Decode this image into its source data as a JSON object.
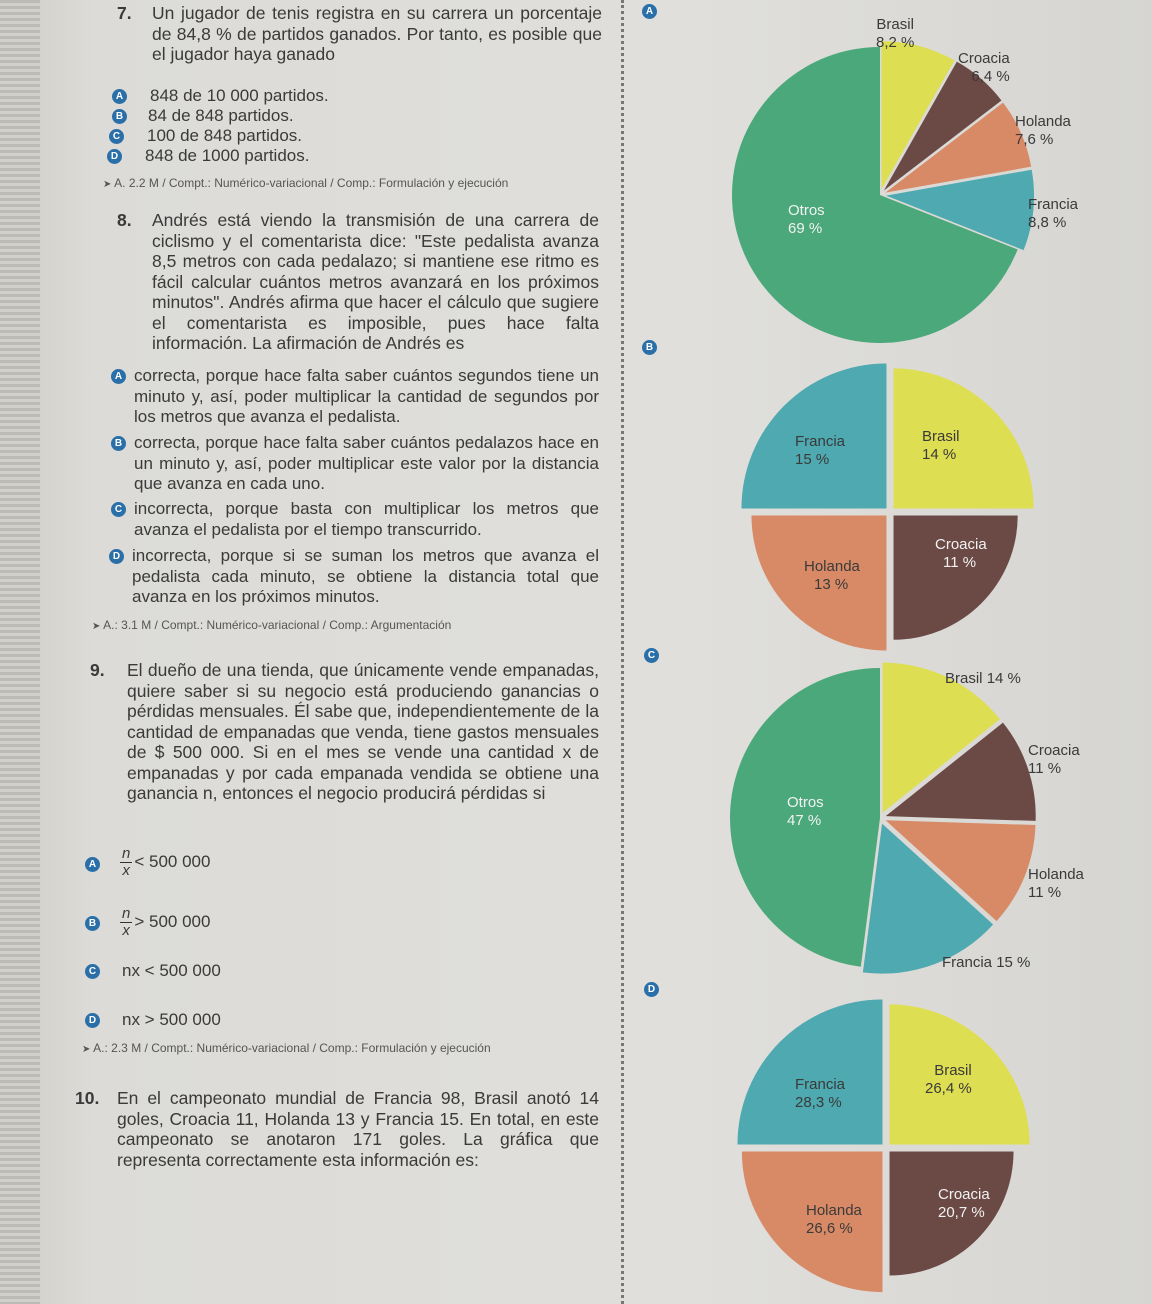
{
  "q7": {
    "num": "7.",
    "text": "Un jugador de tenis registra en su carrera un porcentaje de 84,8 % de partidos ganados. Por tanto, es posible que el jugador haya ganado",
    "options": [
      {
        "letter": "A",
        "text": "848 de 10 000 partidos."
      },
      {
        "letter": "B",
        "text": "84 de 848 partidos."
      },
      {
        "letter": "C",
        "text": "100 de 848 partidos."
      },
      {
        "letter": "D",
        "text": "848 de 1000 partidos."
      }
    ],
    "meta": "A. 2.2 M / Compt.: Numérico-variacional / Comp.: Formulación y ejecución"
  },
  "q8": {
    "num": "8.",
    "text": "Andrés está viendo la transmisión de una carrera de ciclismo y el comentarista dice: \"Este pedalista avanza 8,5 metros con cada pedalazo; si mantiene ese ritmo es fácil calcular cuántos metros avanzará en los próximos minutos\". Andrés afirma que hacer el cálculo que sugiere el comentarista es imposible, pues hace falta información. La afirmación de Andrés es",
    "options": [
      {
        "letter": "A",
        "text": "correcta, porque hace falta saber cuántos segundos tiene un minuto y, así, poder multiplicar la cantidad de segundos por los metros que avanza el pedalista."
      },
      {
        "letter": "B",
        "text": "correcta, porque hace falta saber cuántos pedalazos hace en un minuto y, así, poder multiplicar este valor por la distancia que avanza en cada uno."
      },
      {
        "letter": "C",
        "text": "incorrecta, porque basta con multiplicar los metros que avanza el pedalista por el tiempo transcurrido."
      },
      {
        "letter": "D",
        "text": "incorrecta, porque si se suman los metros que avanza el pedalista cada minuto, se obtiene la distancia total que avanza en los próximos minutos."
      }
    ],
    "meta": "A.: 3.1 M / Compt.: Numérico-variacional / Comp.: Argumentación"
  },
  "q9": {
    "num": "9.",
    "text": "El dueño de una tienda, que únicamente vende empanadas, quiere saber si su negocio está produciendo ganancias o pérdidas mensuales. Él sabe que, independientemente de la cantidad de empanadas que venda, tiene gastos mensuales de $ 500 000. Si en el mes se vende una cantidad x de empanadas y por cada empanada vendida se obtiene una ganancia n, entonces el negocio producirá pérdidas si",
    "options": [
      {
        "letter": "A",
        "num": "n",
        "den": "x",
        "rest": "< 500 000"
      },
      {
        "letter": "B",
        "num": "n",
        "den": "x",
        "rest": "> 500 000"
      },
      {
        "letter": "C",
        "text": "nx < 500 000"
      },
      {
        "letter": "D",
        "text": "nx > 500 000"
      }
    ],
    "meta": "A.: 2.3 M / Compt.: Numérico-variacional / Comp.: Formulación y ejecución"
  },
  "q10": {
    "num": "10.",
    "text": "En el campeonato mundial de Francia 98, Brasil anotó 14 goles, Croacia 11, Holanda 13 y Francia 15. En total, en este campeonato se anotaron 171 goles. La gráfica que representa correctamente esta información es:"
  },
  "chart_data": [
    {
      "type": "pie",
      "option": "A",
      "slices": [
        {
          "name": "Brasil",
          "value": 8.2,
          "label": "8,2 %",
          "color": "#dede52"
        },
        {
          "name": "Croacia",
          "value": 6.4,
          "label": "6,4 %",
          "color": "#6b4a46"
        },
        {
          "name": "Holanda",
          "value": 7.6,
          "label": "7,6 %",
          "color": "#d88a66"
        },
        {
          "name": "Francia",
          "value": 8.8,
          "label": "8,8 %",
          "color": "#4ea9b0"
        },
        {
          "name": "Otros",
          "value": 69,
          "label": "69 %",
          "color": "#4aa87a"
        }
      ]
    },
    {
      "type": "pie",
      "option": "B",
      "slices": [
        {
          "name": "Brasil",
          "value": 14,
          "label": "14 %",
          "color": "#dede52"
        },
        {
          "name": "Croacia",
          "value": 11,
          "label": "11 %",
          "color": "#6b4a46"
        },
        {
          "name": "Holanda",
          "value": 13,
          "label": "13 %",
          "color": "#d88a66"
        },
        {
          "name": "Francia",
          "value": 15,
          "label": "15 %",
          "color": "#4ea9b0"
        }
      ]
    },
    {
      "type": "pie",
      "option": "C",
      "slices": [
        {
          "name": "Brasil",
          "value": 14,
          "label": "14 %",
          "color": "#dede52"
        },
        {
          "name": "Croacia",
          "value": 11,
          "label": "11 %",
          "color": "#6b4a46"
        },
        {
          "name": "Holanda",
          "value": 11,
          "label": "11 %",
          "color": "#d88a66"
        },
        {
          "name": "Francia",
          "value": 15,
          "label": "15 %",
          "color": "#4ea9b0"
        },
        {
          "name": "Otros",
          "value": 47,
          "label": "47 %",
          "color": "#4aa87a"
        }
      ]
    },
    {
      "type": "pie",
      "option": "D",
      "slices": [
        {
          "name": "Brasil",
          "value": 26.4,
          "label": "26,4 %",
          "color": "#dede52"
        },
        {
          "name": "Croacia",
          "value": 20.7,
          "label": "20,7 %",
          "color": "#6b4a46"
        },
        {
          "name": "Holanda",
          "value": 26.6,
          "label": "26,6 %",
          "color": "#d88a66"
        },
        {
          "name": "Francia",
          "value": 28.3,
          "label": "28,3 %",
          "color": "#4ea9b0"
        }
      ]
    }
  ]
}
